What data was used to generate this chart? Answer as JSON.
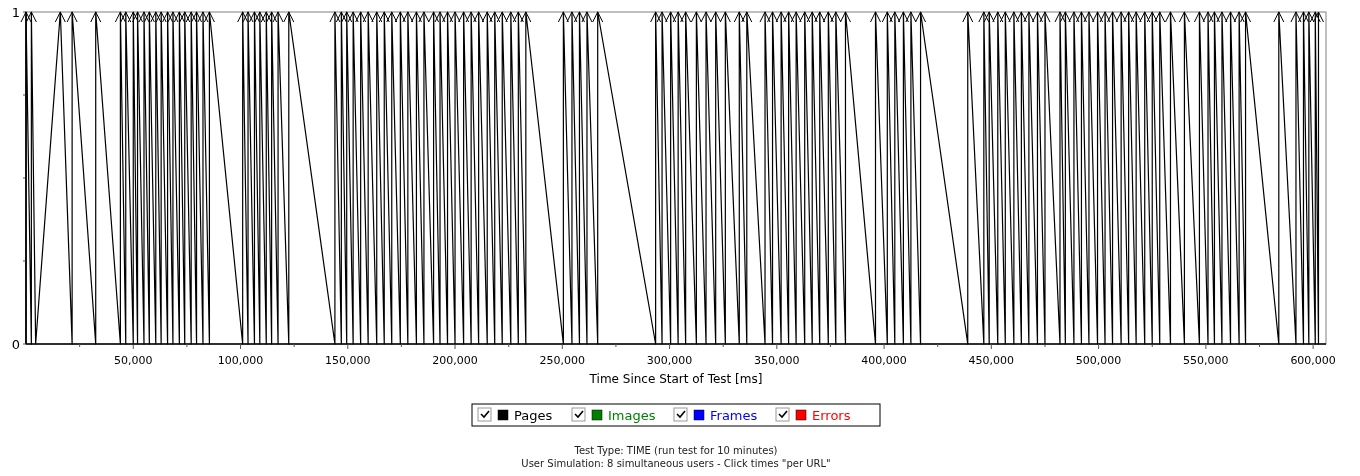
{
  "chart_data": {
    "type": "line",
    "xlabel": "Time Since Start of Test [ms]",
    "xlim": [
      0,
      606000
    ],
    "ylim": [
      0,
      1
    ],
    "xticks": [
      {
        "value": 25000,
        "label": null
      },
      {
        "value": 50000,
        "label": "50,000"
      },
      {
        "value": 75000,
        "label": null
      },
      {
        "value": 100000,
        "label": "100,000"
      },
      {
        "value": 125000,
        "label": null
      },
      {
        "value": 150000,
        "label": "150,000"
      },
      {
        "value": 175000,
        "label": null
      },
      {
        "value": 200000,
        "label": "200,000"
      },
      {
        "value": 225000,
        "label": null
      },
      {
        "value": 250000,
        "label": "250,000"
      },
      {
        "value": 275000,
        "label": null
      },
      {
        "value": 300000,
        "label": "300,000"
      },
      {
        "value": 325000,
        "label": null
      },
      {
        "value": 350000,
        "label": "350,000"
      },
      {
        "value": 375000,
        "label": null
      },
      {
        "value": 400000,
        "label": "400,000"
      },
      {
        "value": 425000,
        "label": null
      },
      {
        "value": 450000,
        "label": "450,000"
      },
      {
        "value": 475000,
        "label": null
      },
      {
        "value": 500000,
        "label": "500,000"
      },
      {
        "value": 525000,
        "label": null
      },
      {
        "value": 550000,
        "label": "550,000"
      },
      {
        "value": 575000,
        "label": null
      },
      {
        "value": 600000,
        "label": "600,000"
      }
    ],
    "yticks": [
      0,
      {
        "value": 0.25,
        "label": null
      },
      {
        "value": 0.5,
        "label": null
      },
      {
        "value": 0.75,
        "label": null
      },
      1
    ],
    "legend": "bottom",
    "line_style": "solid",
    "annotations": [
      "Test Type: TIME (run test for 10 minutes)",
      "User Simulation: 8 simultaneous users - Click times \"per URL\""
    ],
    "series": [
      {
        "name": "Pages",
        "color": "#000000",
        "x": [
          0,
          0,
          2500,
          2500,
          4500,
          16000,
          21500,
          21500,
          32500,
          32500,
          44000,
          44000,
          46500,
          46500,
          50000,
          50000,
          52000,
          52000,
          55000,
          55000,
          57500,
          57500,
          60500,
          60500,
          63000,
          63000,
          66000,
          66000,
          68500,
          68500,
          71500,
          71500,
          74000,
          74000,
          77000,
          77000,
          79500,
          79500,
          82500,
          82500,
          85500,
          85500,
          101000,
          101000,
          103500,
          103500,
          106500,
          106500,
          109000,
          109000,
          112000,
          112000,
          114500,
          114500,
          117500,
          117500,
          122500,
          122500,
          144000,
          144000,
          147000,
          147000,
          149500,
          149500,
          152500,
          152500,
          156000,
          156000,
          159500,
          159500,
          163500,
          163500,
          167000,
          167000,
          170500,
          170500,
          174500,
          174500,
          178000,
          178000,
          182000,
          182000,
          185500,
          185500,
          190000,
          190000,
          193000,
          193000,
          196500,
          196500,
          200000,
          200000,
          204000,
          204000,
          207500,
          207500,
          211000,
          211000,
          215000,
          215000,
          218500,
          218500,
          222000,
          222000,
          226000,
          226000,
          229500,
          229500,
          233000,
          233000,
          250500,
          250500,
          254500,
          254500,
          258000,
          258000,
          261500,
          261500,
          266500,
          266500,
          293500,
          293500,
          296500,
          296500,
          300500,
          300500,
          304000,
          304000,
          307500,
          307500,
          312500,
          312500,
          317000,
          317000,
          321500,
          321500,
          326000,
          326000,
          332500,
          332500,
          336000,
          336000,
          344500,
          344500,
          348000,
          348000,
          352000,
          352000,
          355500,
          355500,
          359000,
          359000,
          363000,
          363000,
          366500,
          366500,
          370000,
          370000,
          374000,
          374000,
          377500,
          377500,
          382000,
          382000,
          396000,
          396000,
          401500,
          401500,
          405000,
          405000,
          409000,
          409000,
          412500,
          412500,
          417000,
          417000,
          439000,
          439000,
          446500,
          446500,
          449000,
          449000,
          453000,
          453000,
          456500,
          456500,
          460500,
          460500,
          464000,
          464000,
          467500,
          467500,
          471500,
          471500,
          475000,
          475000,
          482000,
          482000,
          484500,
          484500,
          488500,
          488500,
          492000,
          492000,
          495500,
          495500,
          499500,
          499500,
          503000,
          503000,
          506500,
          506500,
          510500,
          510500,
          514000,
          514000,
          517500,
          517500,
          521500,
          521500,
          525000,
          525000,
          528500,
          528500,
          533500,
          533500,
          540000,
          540000,
          547000,
          547000,
          551000,
          551000,
          554000,
          554000,
          557500,
          557500,
          561500,
          561500,
          565500,
          565500,
          568500,
          568500,
          584000,
          584000,
          592000,
          592000,
          595500,
          595500,
          598000,
          598000,
          601000,
          601000,
          602500,
          602500
        ],
        "values": [
          0,
          1,
          0,
          1,
          0,
          1,
          0,
          1,
          0,
          1,
          0,
          1,
          0,
          1,
          0,
          1,
          0,
          1,
          0,
          1,
          0,
          1,
          0,
          1,
          0,
          1,
          0,
          1,
          0,
          1,
          0,
          1,
          0,
          1,
          0,
          1,
          0,
          1,
          0,
          1,
          0,
          1,
          0,
          1,
          0,
          1,
          0,
          1,
          0,
          1,
          0,
          1,
          0,
          1,
          0,
          1,
          0,
          1,
          0,
          1,
          0,
          1,
          0,
          1,
          0,
          1,
          0,
          1,
          0,
          1,
          0,
          1,
          0,
          1,
          0,
          1,
          0,
          1,
          0,
          1,
          0,
          1,
          0,
          1,
          0,
          1,
          0,
          1,
          0,
          1,
          0,
          1,
          0,
          1,
          0,
          1,
          0,
          1,
          0,
          1,
          0,
          1,
          0,
          1,
          0,
          1,
          0,
          1,
          0,
          1,
          0,
          1,
          0,
          1,
          0,
          1,
          0,
          1,
          0,
          1,
          0,
          1,
          0,
          1,
          0,
          1,
          0,
          1,
          0,
          1,
          0,
          1,
          0,
          1,
          0,
          1,
          0,
          1,
          0,
          1,
          0,
          1,
          0,
          1,
          0,
          1,
          0,
          1,
          0,
          1,
          0,
          1,
          0,
          1,
          0,
          1,
          0,
          1,
          0,
          1,
          0,
          1,
          0,
          1,
          0,
          1,
          0,
          1,
          0,
          1,
          0,
          1,
          0,
          1,
          0,
          1,
          0,
          1,
          0,
          1,
          0,
          1,
          0,
          1,
          0,
          1,
          0,
          1,
          0,
          1,
          0,
          1,
          0,
          1,
          0,
          1,
          0,
          1,
          0,
          1,
          0,
          1,
          0,
          1,
          0,
          1,
          0,
          1,
          0,
          1,
          0,
          1,
          0,
          1,
          0,
          1,
          0,
          1,
          0,
          1,
          0,
          1,
          0,
          1,
          0,
          1,
          0,
          1,
          0,
          1,
          0,
          1,
          0,
          1,
          0,
          1,
          0,
          1,
          0,
          1,
          0,
          1,
          0,
          1,
          0,
          1,
          0,
          1,
          0,
          1,
          0,
          1,
          0,
          1
        ]
      },
      {
        "name": "Images",
        "color": "#008000"
      },
      {
        "name": "Frames",
        "color": "#0000ff"
      },
      {
        "name": "Errors",
        "color": "#ff0000"
      }
    ]
  }
}
